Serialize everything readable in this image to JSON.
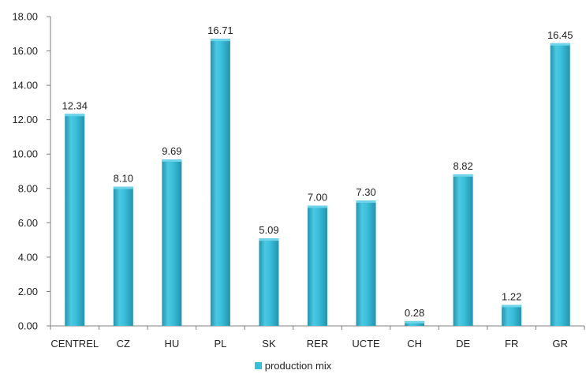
{
  "colors": {
    "bar_fill": "#3ABFDB",
    "bar_light": "#6FD3EA",
    "bar_dark": "#2593AD",
    "axis": "#7F7F7F",
    "text": "#222222"
  },
  "chart_data": {
    "type": "bar",
    "categories": [
      "CENTREL",
      "CZ",
      "HU",
      "PL",
      "SK",
      "RER",
      "UCTE",
      "CH",
      "DE",
      "FR",
      "GR"
    ],
    "series": [
      {
        "name": "production mix",
        "values": [
          12.34,
          8.1,
          9.69,
          16.71,
          5.09,
          7.0,
          7.3,
          0.28,
          8.82,
          1.22,
          16.45
        ],
        "labels": [
          "12.34",
          "8.10",
          "9.69",
          "16.71",
          "5.09",
          "7.00",
          "7.30",
          "0.28",
          "8.82",
          "1.22",
          "16.45"
        ]
      }
    ],
    "ylim": [
      0,
      18
    ],
    "yticks": [
      "0.00",
      "2.00",
      "4.00",
      "6.00",
      "8.00",
      "10.00",
      "12.00",
      "14.00",
      "16.00",
      "18.00"
    ],
    "title": "",
    "xlabel": "",
    "ylabel": "",
    "grid": false,
    "legend_position": "bottom"
  }
}
